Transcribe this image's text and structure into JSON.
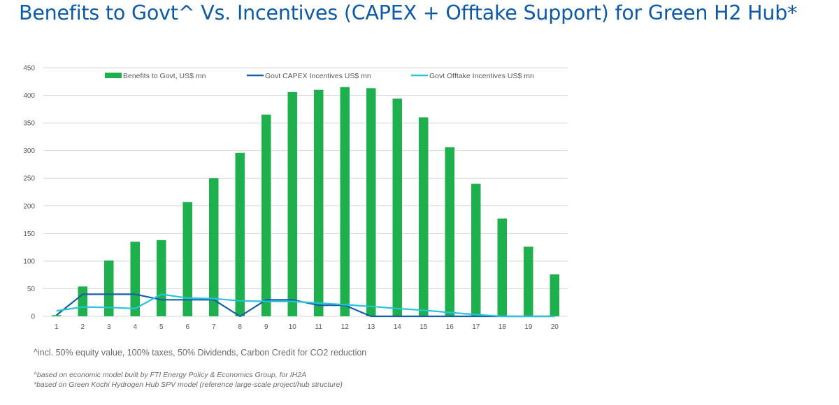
{
  "title": "Benefits to Govt^ Vs. Incentives (CAPEX + Offtake Support) for Green H2 Hub*",
  "footnotes": {
    "equity": "^incl. 50% equity value, 100% taxes, 50% Dividends, Carbon Credit for CO2 reduction",
    "model_source": "^based on economic model built by FTI Energy Policy & Economics Group, for IH2A",
    "project_source": "*based on Green Kochi Hydrogen Hub SPV model (reference large-scale project/hub structure)"
  },
  "colors": {
    "title": "#0d5aa7",
    "bars": "#1fb04e",
    "capex_line": "#155fa8",
    "offtake_line": "#27c3d8",
    "grid": "#d9d9d9",
    "axis_text": "#595959"
  },
  "chart_data": {
    "type": "bar",
    "categories": [
      "1",
      "2",
      "3",
      "4",
      "5",
      "6",
      "7",
      "8",
      "9",
      "10",
      "11",
      "12",
      "13",
      "14",
      "15",
      "16",
      "17",
      "18",
      "19",
      "20"
    ],
    "ylim": [
      0,
      450
    ],
    "yticks": [
      0,
      50,
      100,
      150,
      200,
      250,
      300,
      350,
      400,
      450
    ],
    "grid": true,
    "legend_position": "top",
    "series": [
      {
        "name": "Benefits to Govt, US$ mn",
        "type": "bar",
        "values": [
          2,
          54,
          101,
          135,
          138,
          207,
          250,
          296,
          365,
          406,
          410,
          415,
          413,
          394,
          360,
          306,
          240,
          177,
          126,
          76
        ]
      },
      {
        "name": "Govt CAPEX Incentives US$ mn",
        "type": "line",
        "values": [
          2,
          40,
          40,
          40,
          30,
          30,
          30,
          0,
          30,
          30,
          20,
          20,
          0,
          0,
          0,
          0,
          0,
          0,
          0,
          0
        ]
      },
      {
        "name": "Govt Offtake Incentives US$ mn",
        "type": "line",
        "values": [
          10,
          17,
          16,
          14,
          40,
          33,
          32,
          28,
          27,
          27,
          24,
          21,
          18,
          14,
          11,
          7,
          3,
          0,
          0,
          0
        ]
      }
    ]
  }
}
